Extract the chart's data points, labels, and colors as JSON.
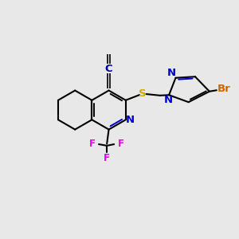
{
  "bg_color": "#e8e8e8",
  "bond_color": "#000000",
  "bond_width": 1.5,
  "atom_colors": {
    "N": "#0000cc",
    "S": "#ccaa00",
    "F": "#ee00ee",
    "Br": "#cc6600",
    "C_cyan": "#0000aa"
  },
  "font_size": 8.5,
  "xlim": [
    0,
    10
  ],
  "ylim": [
    0,
    10
  ]
}
